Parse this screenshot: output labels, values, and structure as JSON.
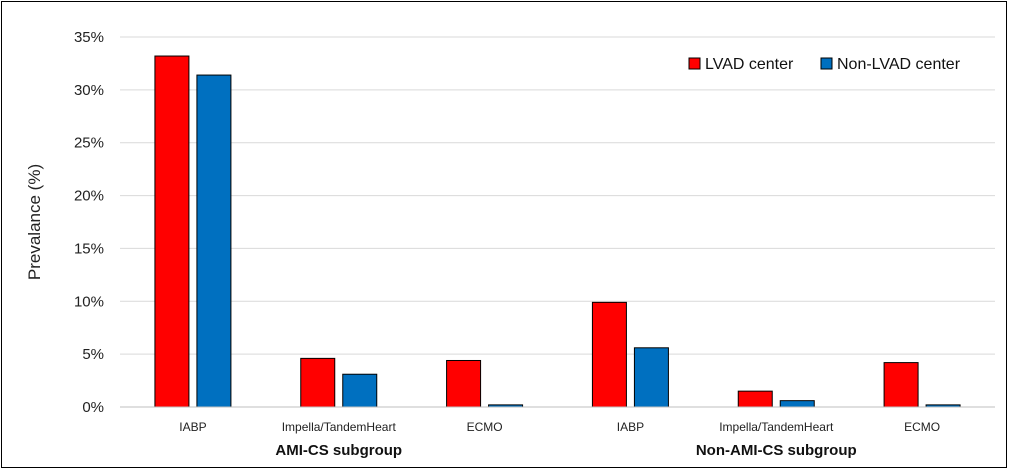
{
  "chart_data": {
    "type": "bar",
    "ylabel": "Prevalance (%)",
    "ylim": [
      0,
      35
    ],
    "yticks": [
      "0%",
      "5%",
      "10%",
      "15%",
      "20%",
      "25%",
      "30%",
      "35%"
    ],
    "grid": true,
    "legend_position": "top-right",
    "categories": [
      "IABP",
      "Impella/TandemHeart",
      "ECMO",
      "IABP",
      "Impella/TandemHeart",
      "ECMO"
    ],
    "groups": [
      {
        "label": "AMI-CS subgroup",
        "categories": [
          0,
          1,
          2
        ]
      },
      {
        "label": "Non-AMI-CS subgroup",
        "categories": [
          3,
          4,
          5
        ]
      }
    ],
    "series": [
      {
        "name": "LVAD center",
        "color": "#ff0000",
        "values": [
          33.2,
          4.6,
          4.4,
          9.9,
          1.5,
          4.2
        ]
      },
      {
        "name": "Non-LVAD center",
        "color": "#0070c0",
        "values": [
          31.4,
          3.1,
          0.2,
          5.6,
          0.6,
          0.2
        ]
      }
    ]
  }
}
